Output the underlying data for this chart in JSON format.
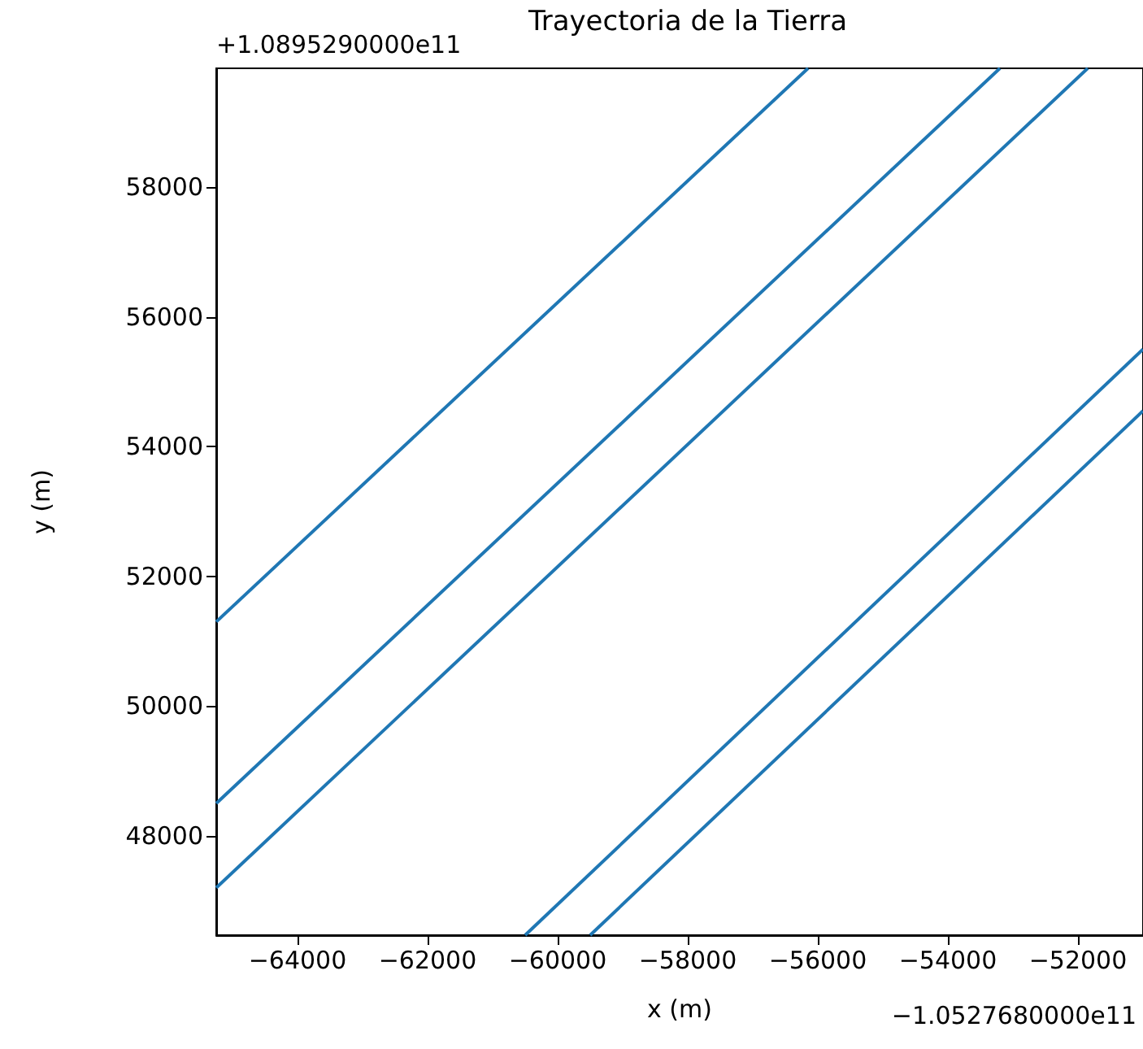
{
  "chart_data": {
    "type": "line",
    "title": "Trayectoria de la Tierra",
    "xlabel": "x (m)",
    "ylabel": "y (m)",
    "annotations": [
      "+1.0895290000e11",
      "−1.0527680000e11"
    ],
    "xlim": [
      -65250,
      -51000
    ],
    "ylim": [
      46470,
      59830
    ],
    "xticks": [
      -64000,
      -62000,
      -60000,
      -58000,
      -56000,
      -54000,
      -52000
    ],
    "yticks": [
      48000,
      50000,
      52000,
      54000,
      56000,
      58000
    ],
    "grid": false,
    "marker": "none",
    "line_style": "solid",
    "series": [
      {
        "color": "#1f77b4",
        "x": [
          -65250,
          -56150
        ],
        "values": [
          51300,
          59830
        ]
      },
      {
        "color": "#1f77b4",
        "x": [
          -65250,
          -53200
        ],
        "values": [
          48500,
          59830
        ]
      },
      {
        "color": "#1f77b4",
        "x": [
          -65250,
          -51850
        ],
        "values": [
          47200,
          59830
        ]
      },
      {
        "color": "#1f77b4",
        "x": [
          -60500,
          -51000
        ],
        "values": [
          46470,
          55500
        ]
      },
      {
        "color": "#1f77b4",
        "x": [
          -59500,
          -51000
        ],
        "values": [
          46470,
          54550
        ]
      }
    ]
  }
}
